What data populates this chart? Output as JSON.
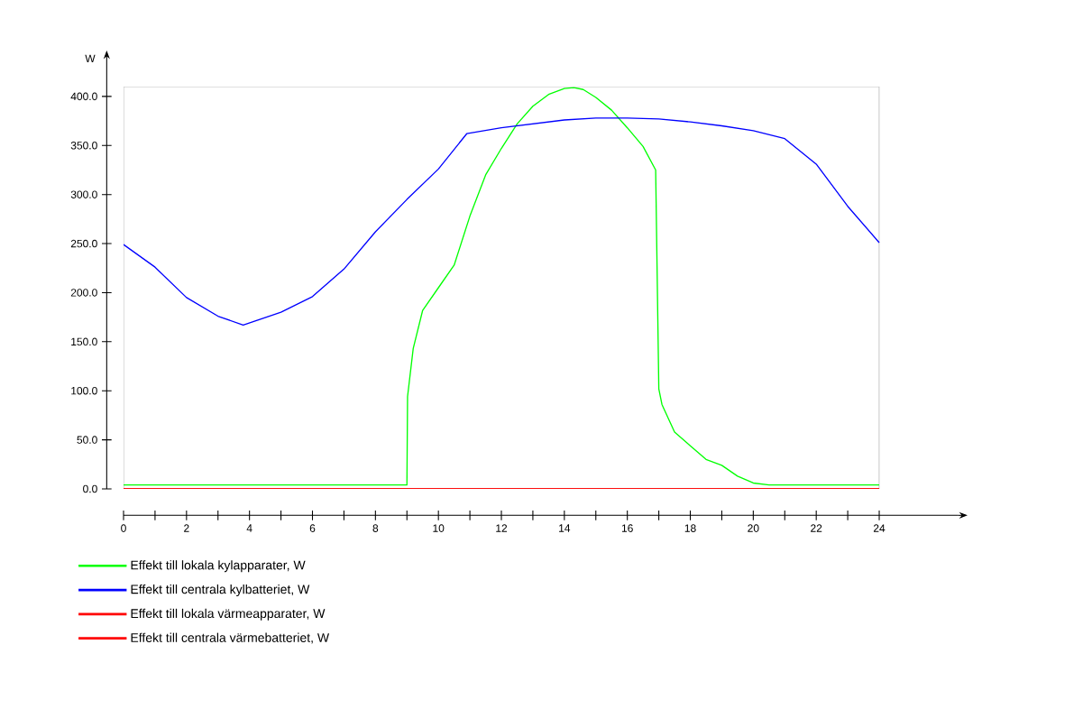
{
  "chart_data": {
    "type": "line",
    "ylabel": "W",
    "xlim": [
      0,
      26.5
    ],
    "ylim": [
      0,
      410
    ],
    "xticks": [
      0,
      2,
      4,
      6,
      8,
      10,
      12,
      14,
      16,
      18,
      20,
      22,
      24
    ],
    "yticks": [
      {
        "value": 0,
        "label": "0.0"
      },
      {
        "value": 50,
        "label": "50.0"
      },
      {
        "value": 100,
        "label": "100.0"
      },
      {
        "value": 150,
        "label": "150.0"
      },
      {
        "value": 200,
        "label": "200.0"
      },
      {
        "value": 250,
        "label": "250.0"
      },
      {
        "value": 300,
        "label": "300.0"
      },
      {
        "value": 350,
        "label": "350.0"
      },
      {
        "value": 400,
        "label": "400.0"
      }
    ],
    "legend": "bottom left",
    "grid": false,
    "marker": "none",
    "line_style": "solid",
    "series": [
      {
        "name": "Effekt till lokala kylapparater, W",
        "color": "#00ff00",
        "x": [
          0,
          9,
          9.02,
          9.2,
          9.5,
          10,
          10.5,
          11,
          11.5,
          12,
          12.5,
          13,
          13.5,
          14,
          14.3,
          14.6,
          15,
          15.5,
          16,
          16.5,
          16.9,
          17,
          17.1,
          17.5,
          18,
          18.5,
          19,
          19.5,
          20,
          20.5,
          24
        ],
        "values": [
          4,
          4,
          94,
          143,
          182,
          205,
          228,
          278,
          320,
          347,
          372,
          390,
          402,
          408,
          409,
          407,
          399,
          386,
          368,
          349,
          325,
          102,
          86,
          58,
          44,
          30,
          24,
          13,
          6,
          4,
          4
        ]
      },
      {
        "name": "Effekt till centrala kylbatteriet, W",
        "color": "#0000ff",
        "x": [
          0,
          1,
          2,
          3,
          3.8,
          5,
          6,
          7,
          8,
          9,
          10,
          10.9,
          12,
          13,
          14,
          15,
          16,
          17,
          18,
          19,
          20,
          21,
          22,
          23,
          24
        ],
        "values": [
          249,
          226,
          195,
          176,
          167,
          180,
          196,
          224,
          262,
          295,
          326,
          362,
          368,
          372,
          376,
          378,
          378,
          377,
          374,
          370,
          365,
          357,
          331,
          288,
          251
        ]
      },
      {
        "name": "Effekt till lokala värmeapparater, W",
        "color": "#ff0000",
        "x": [
          0,
          24
        ],
        "values": [
          0,
          0
        ]
      },
      {
        "name": "Effekt till centrala värmebatteriet, W",
        "color": "#ff0000",
        "x": [
          0,
          24
        ],
        "values": [
          0,
          0
        ]
      }
    ]
  }
}
